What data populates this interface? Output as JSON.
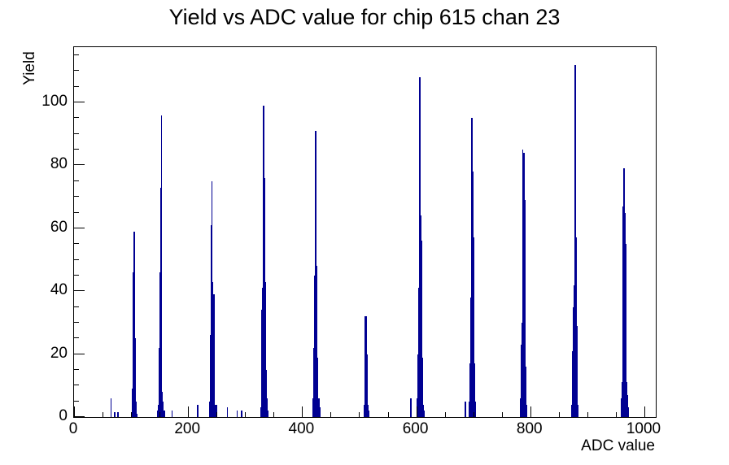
{
  "title": "Yield vs ADC value for chip 615 chan 23",
  "chart_data": {
    "type": "bar",
    "title": "Yield vs ADC value for chip 615 chan 23",
    "xlabel": "ADC value",
    "ylabel": "Yield",
    "xlim": [
      0,
      1020
    ],
    "ylim": [
      0,
      117.6
    ],
    "x_major_ticks": [
      0,
      200,
      400,
      600,
      800,
      1000
    ],
    "x_minor_step": 50,
    "y_major_ticks": [
      0,
      20,
      40,
      60,
      80,
      100
    ],
    "y_minor_step": 5,
    "grid": false,
    "legend": "none",
    "line_color": "#000092",
    "peak_summary": {
      "cluster_positions_adc": [
        105,
        152,
        242,
        332,
        423,
        512,
        606,
        698,
        788,
        878,
        964
      ],
      "cluster_max_yields": [
        59,
        96,
        75,
        99,
        91,
        32,
        108,
        95,
        85,
        112,
        79
      ]
    },
    "spikes": [
      [
        65,
        6
      ],
      [
        71,
        1.5
      ],
      [
        77,
        1.5
      ],
      [
        101,
        1
      ],
      [
        102.5,
        9
      ],
      [
        104,
        46
      ],
      [
        105.5,
        59
      ],
      [
        107,
        25
      ],
      [
        108.5,
        5
      ],
      [
        110,
        1
      ],
      [
        146,
        2
      ],
      [
        147.5,
        4
      ],
      [
        149,
        22
      ],
      [
        150.5,
        46
      ],
      [
        152,
        73
      ],
      [
        153.5,
        96
      ],
      [
        155,
        8
      ],
      [
        156.5,
        5
      ],
      [
        158,
        2
      ],
      [
        172,
        2
      ],
      [
        217,
        4
      ],
      [
        237.5,
        5
      ],
      [
        239,
        26
      ],
      [
        240.5,
        61
      ],
      [
        242,
        75
      ],
      [
        243.5,
        43
      ],
      [
        245,
        39
      ],
      [
        246.5,
        4
      ],
      [
        250,
        4
      ],
      [
        269,
        3
      ],
      [
        286,
        2
      ],
      [
        294,
        2
      ],
      [
        327.5,
        3
      ],
      [
        329,
        34
      ],
      [
        330.5,
        41
      ],
      [
        332,
        99
      ],
      [
        333.5,
        76
      ],
      [
        335,
        43
      ],
      [
        336.5,
        15
      ],
      [
        338,
        6
      ],
      [
        339.5,
        2
      ],
      [
        418.5,
        6
      ],
      [
        420,
        22
      ],
      [
        421.5,
        45
      ],
      [
        423,
        91
      ],
      [
        424.5,
        91
      ],
      [
        426,
        48
      ],
      [
        427.5,
        19
      ],
      [
        429,
        6
      ],
      [
        430.5,
        3
      ],
      [
        509.5,
        4
      ],
      [
        511,
        32
      ],
      [
        512.5,
        32
      ],
      [
        514,
        20
      ],
      [
        515.5,
        4
      ],
      [
        517,
        2
      ],
      [
        591,
        6
      ],
      [
        601.5,
        6
      ],
      [
        603,
        20
      ],
      [
        604.5,
        41
      ],
      [
        606,
        108
      ],
      [
        607.5,
        64
      ],
      [
        609,
        56
      ],
      [
        610.5,
        19
      ],
      [
        612,
        4
      ],
      [
        613.5,
        2
      ],
      [
        686,
        5
      ],
      [
        693,
        5
      ],
      [
        694.5,
        17
      ],
      [
        696,
        38
      ],
      [
        697.5,
        95
      ],
      [
        699,
        78
      ],
      [
        700.5,
        57
      ],
      [
        702,
        17
      ],
      [
        703.5,
        5
      ],
      [
        782.5,
        6
      ],
      [
        784,
        23
      ],
      [
        785.5,
        30
      ],
      [
        787,
        85
      ],
      [
        788.5,
        84
      ],
      [
        790,
        69
      ],
      [
        791.5,
        16
      ],
      [
        793,
        4
      ],
      [
        872.5,
        4
      ],
      [
        874,
        21
      ],
      [
        875.5,
        35
      ],
      [
        877,
        42
      ],
      [
        878.5,
        112
      ],
      [
        880,
        57
      ],
      [
        881.5,
        29
      ],
      [
        883,
        4
      ],
      [
        959.5,
        6
      ],
      [
        961,
        11
      ],
      [
        962.5,
        67
      ],
      [
        964,
        79
      ],
      [
        965.5,
        65
      ],
      [
        967,
        55
      ],
      [
        968.5,
        11
      ],
      [
        970,
        7
      ],
      [
        971.5,
        3
      ]
    ]
  }
}
